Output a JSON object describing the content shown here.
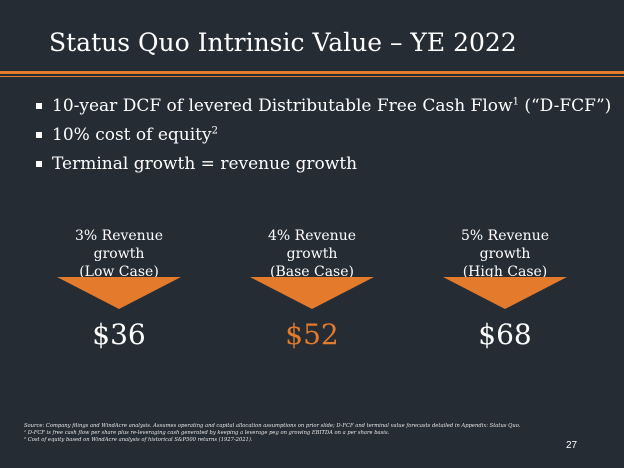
{
  "slide": {
    "title": "Status Quo Intrinsic Value – YE 2022",
    "bullets": [
      {
        "text": "10-year DCF of levered Distributable Free Cash Flow",
        "sup": "1",
        "tail": " (“D-FCF”)"
      },
      {
        "text": "10% cost of equity",
        "sup": "2",
        "tail": ""
      },
      {
        "text": "Terminal growth = revenue growth",
        "sup": "",
        "tail": ""
      }
    ],
    "cases": [
      {
        "line1": "3% Revenue growth",
        "line2": "(Low Case)",
        "value": "$36",
        "color": "#ffffff"
      },
      {
        "line1": "4% Revenue growth",
        "line2": "(Base Case)",
        "value": "$52",
        "color": "#e47a2c"
      },
      {
        "line1": "5% Revenue growth",
        "line2": "(High Case)",
        "value": "$68",
        "color": "#ffffff"
      }
    ],
    "arrow_color": "#e47a2c",
    "accent_color": "#e47a2c",
    "footnotes": [
      "Source: Company filings and WindAcre analysis. Assumes operating and capital allocation assumptions on prior slide; D-FCF and terminal value forecasts detailed in Appendix: Status Quo.",
      "¹ D-FCF is free cash flow per share plus re-leveraging cash generated by keeping a leverage peg on growing EBITDA on a per share basis.",
      "² Cost of equity based on WindAcre analysis of historical S&P500 returns (1927-2021)."
    ],
    "page_number": "27"
  }
}
